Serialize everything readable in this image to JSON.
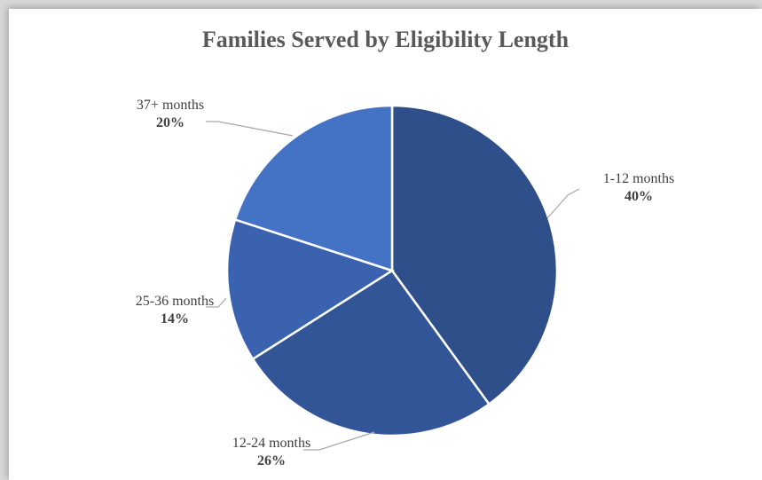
{
  "chart_data": {
    "type": "pie",
    "title": "Families Served by Eligibility Length",
    "categories": [
      "1-12 months",
      "12-24 months",
      "25-36 months",
      "37+ months"
    ],
    "values": [
      40,
      26,
      14,
      20
    ],
    "value_labels": [
      "40%",
      "26%",
      "14%",
      "20%"
    ],
    "colors": [
      "#2e4f8a",
      "#325598",
      "#3a62ae",
      "#4472c4"
    ],
    "start_angle_deg": 0,
    "direction": "clockwise",
    "legend": "none"
  }
}
